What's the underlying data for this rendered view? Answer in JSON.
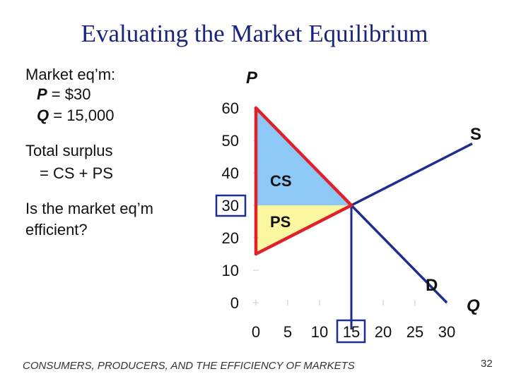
{
  "title": "Evaluating the Market Equilibrium",
  "bullets": {
    "eq_heading": "Market eq’m:",
    "p_symbol": "P",
    "p_value": " = $30",
    "q_symbol": "Q",
    "q_value": " = 15,000",
    "surplus_line1": "Total surplus",
    "surplus_line2": "= CS + PS",
    "question_line1": "Is the market eq’m",
    "question_line2": "efficient?"
  },
  "footer": "CONSUMERS, PRODUCERS, AND THE EFFICIENCY OF MARKETS",
  "page_number": "32",
  "chart_data": {
    "type": "line",
    "xlabel": "Q",
    "ylabel": "P",
    "x_ticks": [
      0,
      5,
      10,
      15,
      20,
      25,
      30
    ],
    "y_ticks": [
      0,
      10,
      20,
      30,
      40,
      50,
      60
    ],
    "xlim": [
      0,
      30
    ],
    "ylim": [
      0,
      60
    ],
    "grid": false,
    "series": [
      {
        "name": "S",
        "points": [
          [
            0,
            15
          ],
          [
            15,
            30
          ],
          [
            34,
            49
          ]
        ]
      },
      {
        "name": "D",
        "points": [
          [
            0,
            60
          ],
          [
            15,
            30
          ],
          [
            30,
            0
          ]
        ]
      }
    ],
    "equilibrium": {
      "x": 15,
      "y": 30
    },
    "highlighted_ticks": {
      "x": 15,
      "y": 30
    },
    "areas": [
      {
        "label": "CS",
        "polygon": [
          [
            0,
            60
          ],
          [
            0,
            30
          ],
          [
            15,
            30
          ]
        ]
      },
      {
        "label": "PS",
        "polygon": [
          [
            0,
            30
          ],
          [
            0,
            15
          ],
          [
            15,
            30
          ]
        ]
      }
    ],
    "colors": {
      "cs_fill": "#8ec8f4",
      "ps_fill": "#fbf7a0",
      "curve": "#1f2e8c",
      "outline": "#e0202a",
      "axis_text": "#111111"
    }
  }
}
